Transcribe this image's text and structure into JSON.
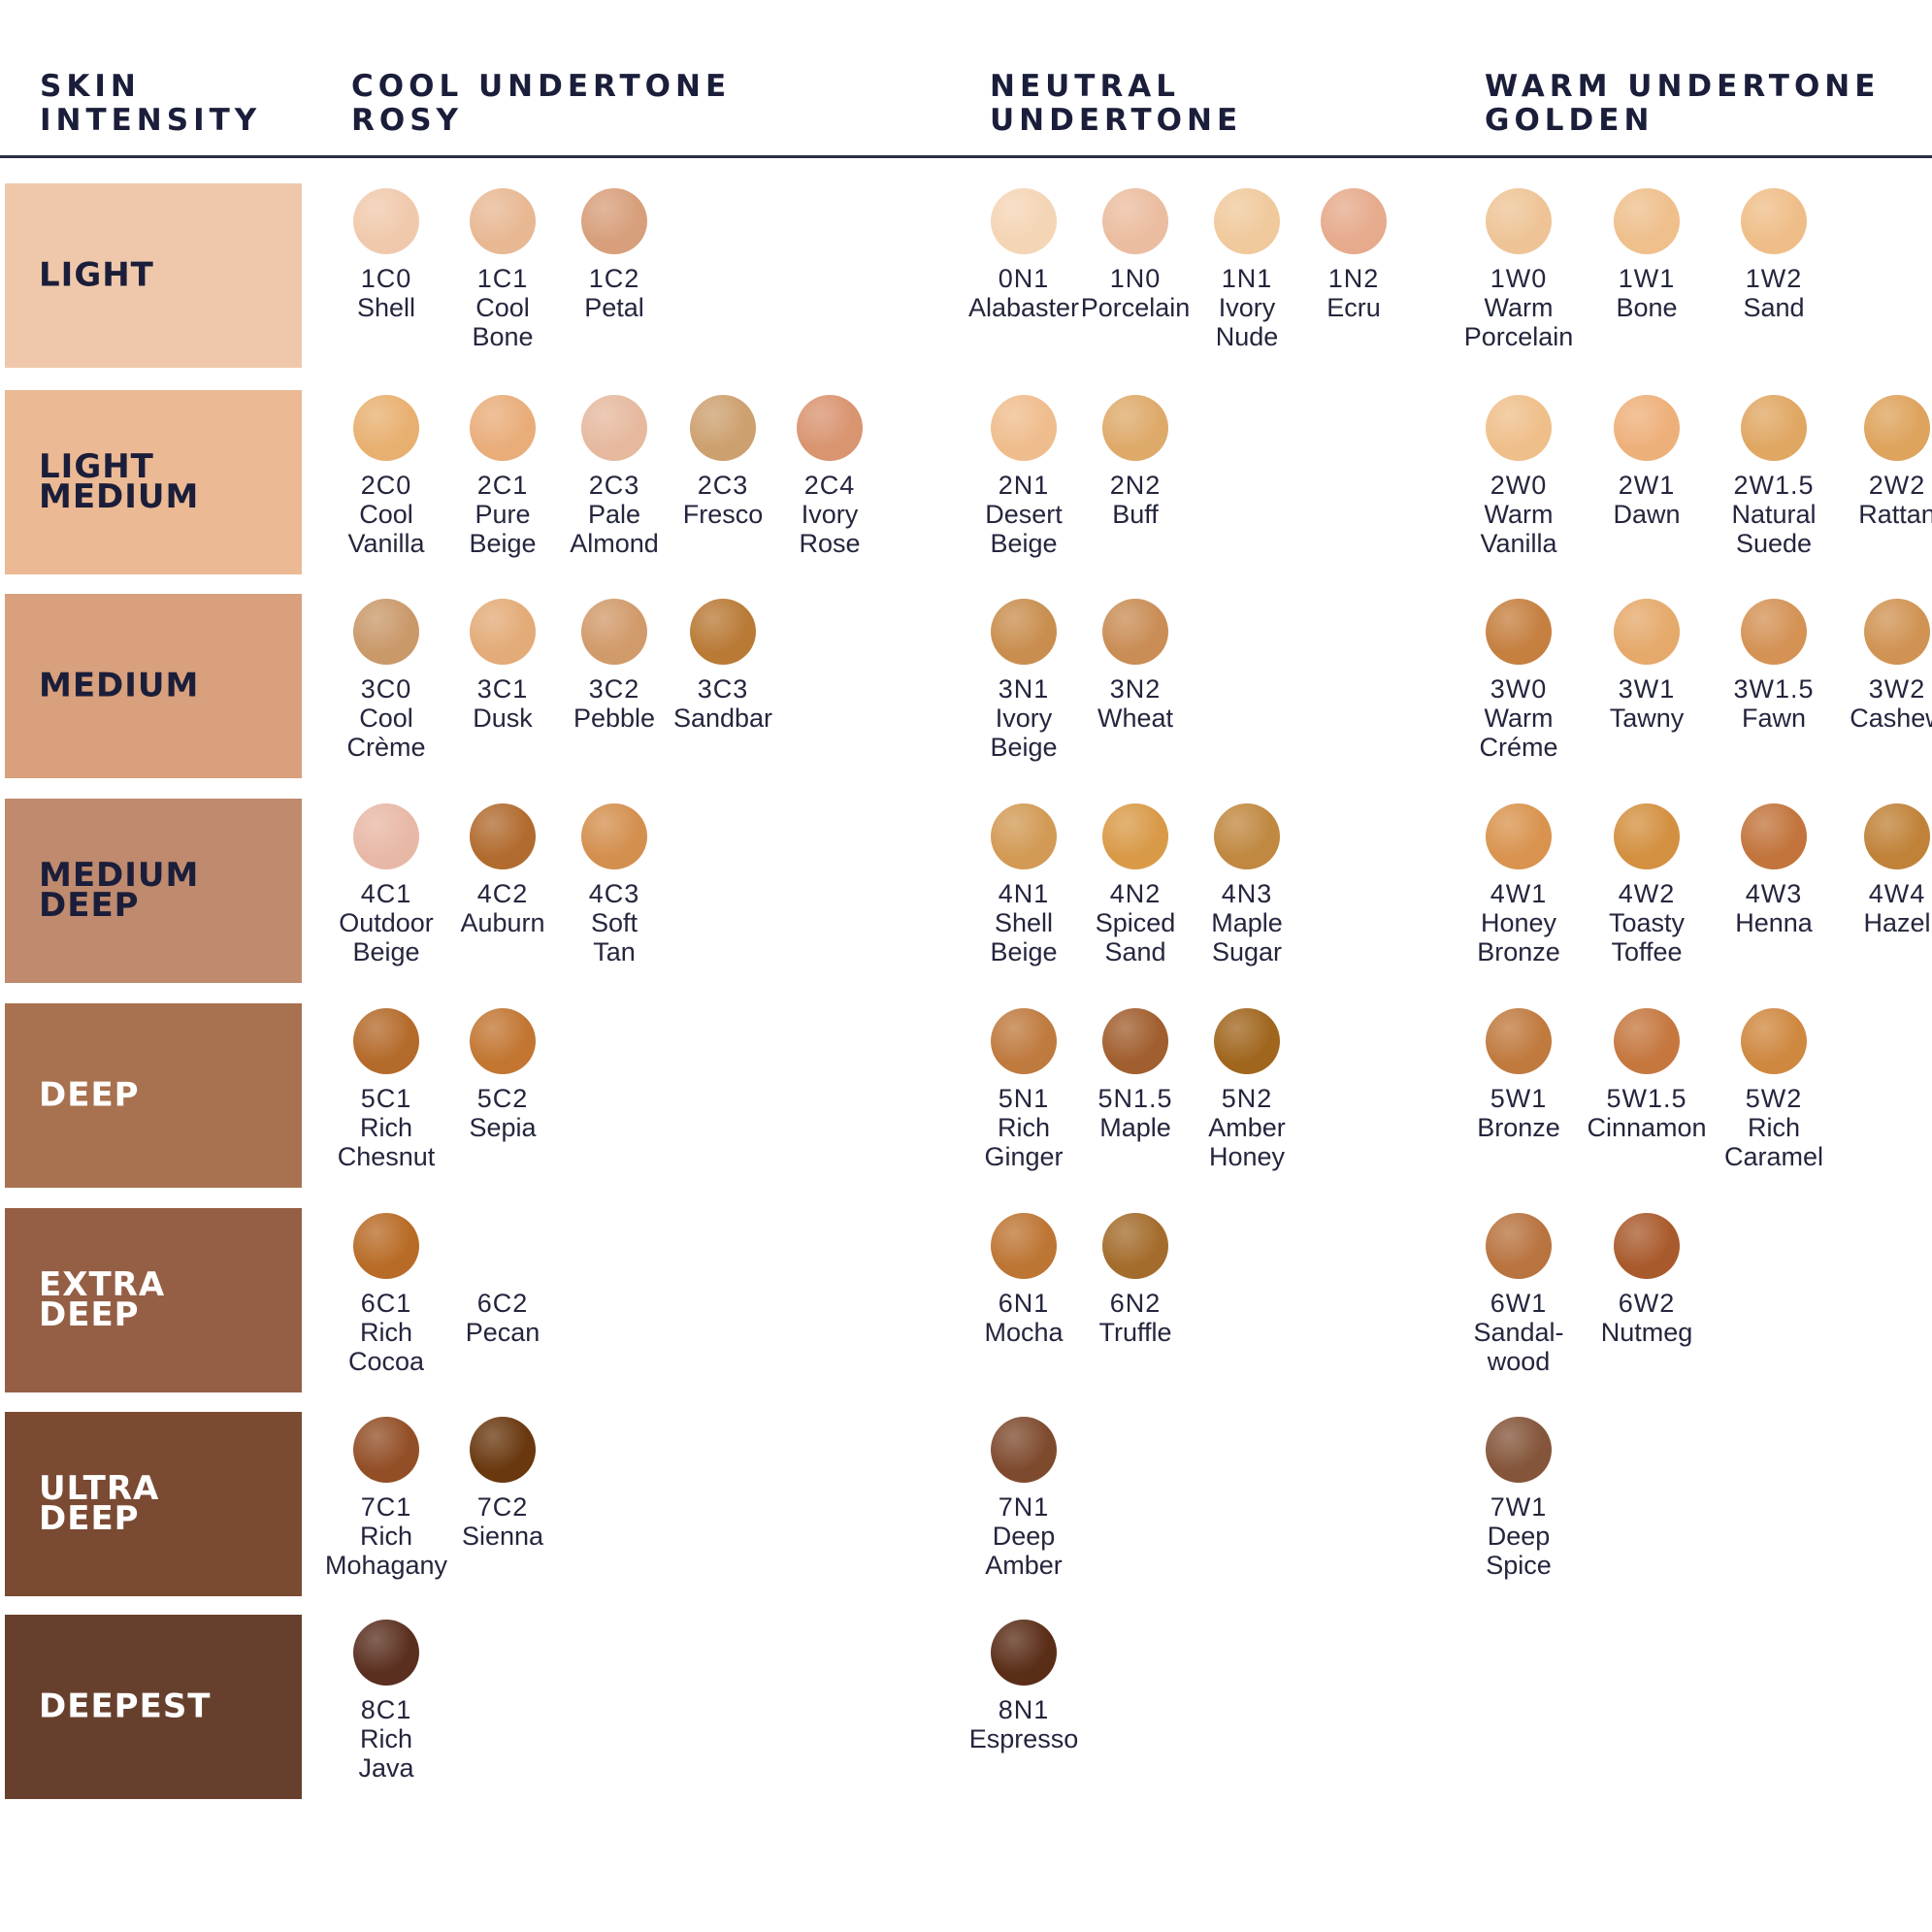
{
  "headers": {
    "intensity": "SKIN\nINTENSITY",
    "cool": "COOL UNDERTONE\nROSY",
    "neutral": "NEUTRAL\nUNDERTONE",
    "warm": "WARM UNDERTONE\nGOLDEN"
  },
  "rows": [
    {
      "label": "LIGHT",
      "band_color": "#efc8ab",
      "text_color": "#1b1e3a"
    },
    {
      "label": "LIGHT\nMEDIUM",
      "band_color": "#ebb993",
      "text_color": "#1b1e3a"
    },
    {
      "label": "MEDIUM",
      "band_color": "#d8a07c",
      "text_color": "#1b1e3a"
    },
    {
      "label": "MEDIUM\nDEEP",
      "band_color": "#bf8a6e",
      "text_color": "#1b1e3a"
    },
    {
      "label": "DEEP",
      "band_color": "#a8714f",
      "text_color": "#ffffff"
    },
    {
      "label": "EXTRA\nDEEP",
      "band_color": "#955f45",
      "text_color": "#ffffff"
    },
    {
      "label": "ULTRA\nDEEP",
      "band_color": "#7a4a32",
      "text_color": "#ffffff"
    },
    {
      "label": "DEEPEST",
      "band_color": "#67402d",
      "text_color": "#ffffff"
    }
  ],
  "shades": [
    {
      "group": "cool",
      "row": 0,
      "slot": 0,
      "code": "1C0",
      "name": "Shell",
      "color": "#f0c9ac"
    },
    {
      "group": "cool",
      "row": 0,
      "slot": 1,
      "code": "1C1",
      "name": "Cool\nBone",
      "color": "#e8b893"
    },
    {
      "group": "cool",
      "row": 0,
      "slot": 2,
      "code": "1C2",
      "name": "Petal",
      "color": "#d79f7b"
    },
    {
      "group": "neutral",
      "row": 0,
      "slot": 0,
      "code": "0N1",
      "name": "Alabaster",
      "color": "#f4d5b5"
    },
    {
      "group": "neutral",
      "row": 0,
      "slot": 1,
      "code": "1N0",
      "name": "Porcelain",
      "color": "#ebbda0"
    },
    {
      "group": "neutral",
      "row": 0,
      "slot": 2,
      "code": "1N1",
      "name": "Ivory\nNude",
      "color": "#f0c99c"
    },
    {
      "group": "neutral",
      "row": 0,
      "slot": 3,
      "code": "1N2",
      "name": "Ecru",
      "color": "#e6aa8c"
    },
    {
      "group": "warm",
      "row": 0,
      "slot": 0,
      "code": "1W0",
      "name": "Warm\nPorcelain",
      "color": "#eec496"
    },
    {
      "group": "warm",
      "row": 0,
      "slot": 1,
      "code": "1W1",
      "name": "Bone",
      "color": "#efbf8c"
    },
    {
      "group": "warm",
      "row": 0,
      "slot": 2,
      "code": "1W2",
      "name": "Sand",
      "color": "#efbe88"
    },
    {
      "group": "cool",
      "row": 1,
      "slot": 0,
      "code": "2C0",
      "name": "Cool\nVanilla",
      "color": "#e8b070"
    },
    {
      "group": "cool",
      "row": 1,
      "slot": 1,
      "code": "2C1",
      "name": "Pure\nBeige",
      "color": "#e9ad7a"
    },
    {
      "group": "cool",
      "row": 1,
      "slot": 2,
      "code": "2C3",
      "name": "Pale\nAlmond",
      "color": "#e6b99f"
    },
    {
      "group": "cool",
      "row": 1,
      "slot": 3,
      "code": "2C3",
      "name": "Fresco",
      "color": "#cda06f"
    },
    {
      "group": "cool",
      "row": 1,
      "slot": 4,
      "code": "2C4",
      "name": "Ivory\nRose",
      "color": "#d99470"
    },
    {
      "group": "neutral",
      "row": 1,
      "slot": 0,
      "code": "2N1",
      "name": "Desert\nBeige",
      "color": "#efbd8d"
    },
    {
      "group": "neutral",
      "row": 1,
      "slot": 1,
      "code": "2N2",
      "name": "Buff",
      "color": "#deaa6a"
    },
    {
      "group": "warm",
      "row": 1,
      "slot": 0,
      "code": "2W0",
      "name": "Warm\nVanilla",
      "color": "#efbf8a"
    },
    {
      "group": "warm",
      "row": 1,
      "slot": 1,
      "code": "2W1",
      "name": "Dawn",
      "color": "#eeb07a"
    },
    {
      "group": "warm",
      "row": 1,
      "slot": 2,
      "code": "2W1.5",
      "name": "Natural\nSuede",
      "color": "#e0a763"
    },
    {
      "group": "warm",
      "row": 1,
      "slot": 3,
      "code": "2W2",
      "name": "Rattan",
      "color": "#dea35c"
    },
    {
      "group": "cool",
      "row": 2,
      "slot": 0,
      "code": "3C0",
      "name": "Cool\nCrème",
      "color": "#c9996a"
    },
    {
      "group": "cool",
      "row": 2,
      "slot": 1,
      "code": "3C1",
      "name": "Dusk",
      "color": "#e3ab77"
    },
    {
      "group": "cool",
      "row": 2,
      "slot": 2,
      "code": "3C2",
      "name": "Pebble",
      "color": "#d19a6a"
    },
    {
      "group": "cool",
      "row": 2,
      "slot": 3,
      "code": "3C3",
      "name": "Sandbar",
      "color": "#b97a36"
    },
    {
      "group": "neutral",
      "row": 2,
      "slot": 0,
      "code": "3N1",
      "name": "Ivory\nBeige",
      "color": "#c98e4f"
    },
    {
      "group": "neutral",
      "row": 2,
      "slot": 1,
      "code": "3N2",
      "name": "Wheat",
      "color": "#c98d55"
    },
    {
      "group": "warm",
      "row": 2,
      "slot": 0,
      "code": "3W0",
      "name": "Warm\nCréme",
      "color": "#c57f3f"
    },
    {
      "group": "warm",
      "row": 2,
      "slot": 1,
      "code": "3W1",
      "name": "Tawny",
      "color": "#e5a96b"
    },
    {
      "group": "warm",
      "row": 2,
      "slot": 2,
      "code": "3W1.5",
      "name": "Fawn",
      "color": "#d49255"
    },
    {
      "group": "warm",
      "row": 2,
      "slot": 3,
      "code": "3W2",
      "name": "Cashew",
      "color": "#d09353"
    },
    {
      "group": "cool",
      "row": 3,
      "slot": 0,
      "code": "4C1",
      "name": "Outdoor\nBeige",
      "color": "#e8b8a6"
    },
    {
      "group": "cool",
      "row": 3,
      "slot": 1,
      "code": "4C2",
      "name": "Auburn",
      "color": "#b16b2f"
    },
    {
      "group": "cool",
      "row": 3,
      "slot": 2,
      "code": "4C3",
      "name": "Soft\nTan",
      "color": "#d38f4e"
    },
    {
      "group": "neutral",
      "row": 3,
      "slot": 0,
      "code": "4N1",
      "name": "Shell\nBeige",
      "color": "#d29a55"
    },
    {
      "group": "neutral",
      "row": 3,
      "slot": 1,
      "code": "4N2",
      "name": "Spiced\nSand",
      "color": "#d99a48"
    },
    {
      "group": "neutral",
      "row": 3,
      "slot": 2,
      "code": "4N3",
      "name": "Maple\nSugar",
      "color": "#c08840"
    },
    {
      "group": "warm",
      "row": 3,
      "slot": 0,
      "code": "4W1",
      "name": "Honey\nBronze",
      "color": "#d9934e"
    },
    {
      "group": "warm",
      "row": 3,
      "slot": 1,
      "code": "4W2",
      "name": "Toasty\nToffee",
      "color": "#d39040"
    },
    {
      "group": "warm",
      "row": 3,
      "slot": 2,
      "code": "4W3",
      "name": "Henna",
      "color": "#c2743c"
    },
    {
      "group": "warm",
      "row": 3,
      "slot": 3,
      "code": "4W4",
      "name": "Hazel",
      "color": "#c08238"
    },
    {
      "group": "cool",
      "row": 4,
      "slot": 0,
      "code": "5C1",
      "name": "Rich\nChesnut",
      "color": "#b46a2a"
    },
    {
      "group": "cool",
      "row": 4,
      "slot": 1,
      "code": "5C2",
      "name": "Sepia",
      "color": "#c27632"
    },
    {
      "group": "neutral",
      "row": 4,
      "slot": 0,
      "code": "5N1",
      "name": "Rich\nGinger",
      "color": "#bf7a3e"
    },
    {
      "group": "neutral",
      "row": 4,
      "slot": 1,
      "code": "5N1.5",
      "name": "Maple",
      "color": "#a15e2e"
    },
    {
      "group": "neutral",
      "row": 4,
      "slot": 2,
      "code": "5N2",
      "name": "Amber\nHoney",
      "color": "#a0661e"
    },
    {
      "group": "warm",
      "row": 4,
      "slot": 0,
      "code": "5W1",
      "name": "Bronze",
      "color": "#c07a3e"
    },
    {
      "group": "warm",
      "row": 4,
      "slot": 1,
      "code": "5W1.5",
      "name": "Cinnamon",
      "color": "#c5773e"
    },
    {
      "group": "warm",
      "row": 4,
      "slot": 2,
      "code": "5W2",
      "name": "Rich\nCaramel",
      "color": "#cf8840"
    },
    {
      "group": "cool",
      "row": 5,
      "slot": 0,
      "code": "6C1",
      "name": "Rich\nCocoa",
      "color": "#b86b26"
    },
    {
      "group": "cool",
      "row": 5,
      "slot": 1,
      "code": "6C2",
      "name": "Pecan",
      "color": null
    },
    {
      "group": "neutral",
      "row": 5,
      "slot": 0,
      "code": "6N1",
      "name": "Mocha",
      "color": "#bd7533"
    },
    {
      "group": "neutral",
      "row": 5,
      "slot": 1,
      "code": "6N2",
      "name": "Truffle",
      "color": "#a46c2c"
    },
    {
      "group": "warm",
      "row": 5,
      "slot": 0,
      "code": "6W1",
      "name": "Sandal-\nwood",
      "color": "#b8733f"
    },
    {
      "group": "warm",
      "row": 5,
      "slot": 1,
      "code": "6W2",
      "name": "Nutmeg",
      "color": "#a95a2c"
    },
    {
      "group": "cool",
      "row": 6,
      "slot": 0,
      "code": "7C1",
      "name": "Rich\nMohagany",
      "color": "#924e26"
    },
    {
      "group": "cool",
      "row": 6,
      "slot": 1,
      "code": "7C2",
      "name": "Sienna",
      "color": "#69380f"
    },
    {
      "group": "neutral",
      "row": 6,
      "slot": 0,
      "code": "7N1",
      "name": "Deep\nAmber",
      "color": "#7e4a2e"
    },
    {
      "group": "warm",
      "row": 6,
      "slot": 0,
      "code": "7W1",
      "name": "Deep\nSpice",
      "color": "#84553a"
    },
    {
      "group": "cool",
      "row": 7,
      "slot": 0,
      "code": "8C1",
      "name": "Rich\nJava",
      "color": "#5a2f1f"
    },
    {
      "group": "neutral",
      "row": 7,
      "slot": 0,
      "code": "8N1",
      "name": "Espresso",
      "color": "#5a2d17"
    }
  ]
}
